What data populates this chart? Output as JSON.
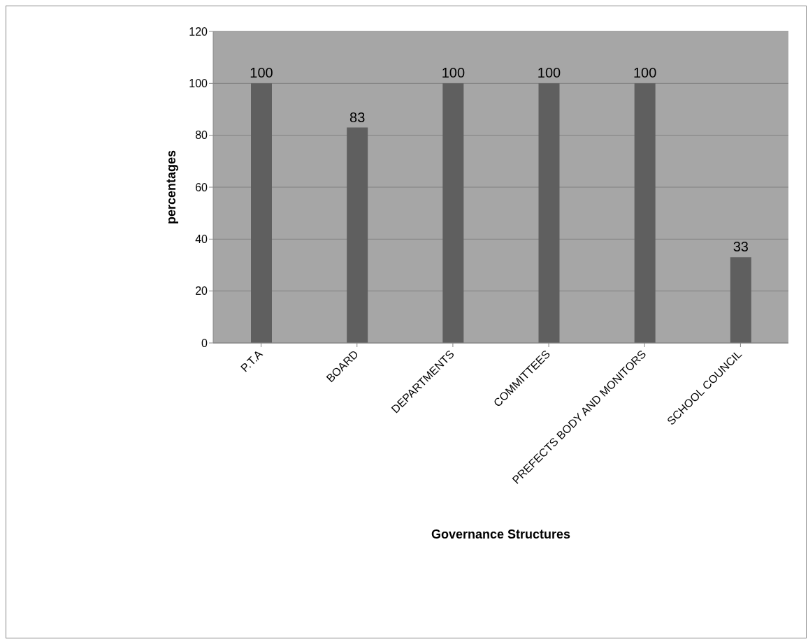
{
  "chart_data": {
    "type": "bar",
    "xlabel": "Governance Structures",
    "ylabel": "percentages",
    "categories": [
      "P.T.A",
      "BOARD",
      "DEPARTMENTS",
      "COMMITTEES",
      "PREFECTS BODY AND MONITORS",
      "SCHOOL COUNCIL"
    ],
    "values": [
      100,
      83,
      100,
      100,
      100,
      33
    ],
    "color": "#5f5f5f",
    "ylim": [
      0,
      120
    ],
    "yticks": [
      0,
      20,
      40,
      60,
      80,
      100,
      120
    ],
    "grid": "y",
    "data_labels": true
  }
}
